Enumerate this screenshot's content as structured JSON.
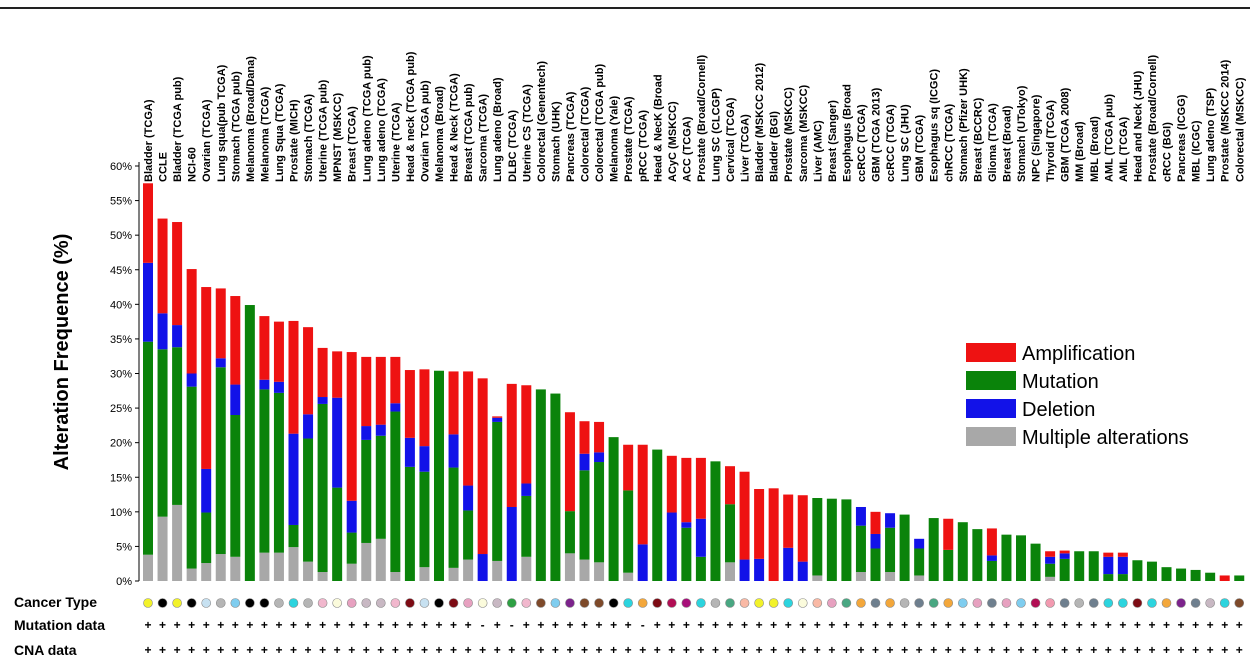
{
  "chart_data": {
    "type": "bar",
    "stacked": true,
    "ylabel": "Alteration Frequence (%)",
    "ylim": [
      0,
      60
    ],
    "yticks": [
      "0%",
      "5%",
      "10%",
      "15%",
      "20%",
      "25%",
      "30%",
      "35%",
      "40%",
      "45%",
      "50%",
      "55%",
      "60%"
    ],
    "grid": false,
    "legend_position": "right",
    "categories": [
      "Bladder (TCGA)",
      "CCLE",
      "Bladder (TCGA pub)",
      "NCI-60",
      "Ovarian (TCGA)",
      "Lung squa(pub TCGA)",
      "Stomach (TCGA pub)",
      "Melanoma (Broad/Dana)",
      "Melanoma (TCGA)",
      "Lung Squa (TCGA)",
      "Prostate (MICH)",
      "Stomach (TCGA)",
      "Uterine (TCGA pub)",
      "MPNST (MSKCC)",
      "Breast (TCGA)",
      "Lung adeno (TCGA pub)",
      "Lung adeno (TCGA)",
      "Uterine (TCGA)",
      "Head & neck (TCGA pub)",
      "Ovarian TCGA pub)",
      "Melanoma (Broad)",
      "Head & Neck (TCGA)",
      "Breast (TCGA pub)",
      "Sarcoma (TCGA)",
      "Lung adeno (Broad)",
      "DLBC (TCGA)",
      "Uterine CS (TCGA)",
      "Colorectal (Genentech)",
      "Stomach (UHK)",
      "Pancreas (TCGA)",
      "Colorectal (TCGA)",
      "Colorectal (TCGA pub)",
      "Melanoma (Yale)",
      "Prostate (TCGA)",
      "pRCC (TCGA)",
      "Head & NecK (Broad",
      "ACyC (MSKCC)",
      "ACC (TCGA)",
      "Prostate (Broad/Cornell)",
      "Lung SC (CLCGP)",
      "Cervical (TCGA)",
      "Liver (TCGA)",
      "Bladder (MSKCC 2012)",
      "Bladder (BGI)",
      "Prostate (MSKCC)",
      "Sarcoma (MSKCC)",
      "Liver (AMC)",
      "Breast (Sanger)",
      "Esophagus (Broad",
      "ccRCC (TCGA)",
      "GBM (TCGA 2013)",
      "ccRCC (TCGA)",
      "Lung SC (JHU)",
      "GBM (TCGA)",
      "Esophagus sq (ICGC)",
      "chRCC (TCGA)",
      "Stomach (Pfizer UHK)",
      "Breast (BCCRC)",
      "Glioma (TCGA)",
      "Breast (Broad)",
      "Stomach (UTokyo)",
      "NPC (Singapore)",
      "Thyroid (TCGA)",
      "GBM (TCGA 2008)",
      "MM (Broad)",
      "MBL (Broad)",
      "AML (TCGA pub)",
      "AML (TCGA)",
      "Head and Neck (JHU)",
      "Prostate (Broad/Cornell)",
      "cRCC (BGI)",
      "Pancreas (ICGG)",
      "MBL (ICGC)",
      "Lung adeno (TSP)",
      "Prostate (MSKCC 2014)",
      "Colorectal (MSKCC)"
    ],
    "series": [
      {
        "name": "Multiple alterations",
        "color": "#a8a8a8",
        "values": [
          3.8,
          9.3,
          11,
          1.8,
          2.6,
          3.9,
          3.5,
          0,
          4.1,
          4.1,
          4.9,
          2.8,
          1.3,
          0,
          2.5,
          5.5,
          6.1,
          1.3,
          0,
          2,
          0,
          1.9,
          3.1,
          0,
          2.9,
          0,
          3.5,
          0,
          0,
          4,
          3.1,
          2.7,
          0,
          1.2,
          0,
          0,
          0,
          0,
          0,
          0,
          2.7,
          0,
          0,
          0,
          0,
          0,
          0.8,
          0,
          0,
          1.3,
          0,
          1.3,
          0,
          0.8,
          0,
          0,
          0,
          0,
          0,
          0,
          0,
          0,
          0.6,
          0,
          0,
          0,
          0,
          0,
          0,
          0,
          0,
          0,
          0,
          0,
          0,
          0
        ]
      },
      {
        "name": "Mutation",
        "color": "#0a830a",
        "values": [
          30.8,
          24.2,
          22.8,
          26.3,
          7.3,
          27,
          20.5,
          39.9,
          23.6,
          23.1,
          3.2,
          17.8,
          24.3,
          13.5,
          4.5,
          14.9,
          14.9,
          23.2,
          16.5,
          13.8,
          30.4,
          14.5,
          7.1,
          0,
          20.1,
          0,
          8.8,
          27.7,
          27.1,
          6.1,
          12.9,
          14.5,
          20.8,
          11.9,
          0,
          19,
          0,
          7.7,
          3.5,
          17.3,
          8.4,
          0,
          0,
          0,
          0,
          0,
          11.2,
          11.9,
          11.8,
          6.7,
          4.7,
          6.4,
          9.6,
          3.9,
          9.1,
          4.5,
          8.5,
          7.5,
          2.9,
          6.7,
          6.6,
          5.4,
          1.9,
          3.2,
          4.3,
          4.3,
          1,
          1,
          3,
          2.8,
          2,
          1.8,
          1.6,
          1.2,
          0,
          0.8
        ]
      },
      {
        "name": "Deletion",
        "color": "#1212e8",
        "values": [
          11.4,
          5.2,
          3.2,
          1.9,
          6.3,
          1.3,
          4.4,
          0,
          1.4,
          1.6,
          13.2,
          3.5,
          1,
          13,
          4.6,
          2,
          1.6,
          1.2,
          4.2,
          3.7,
          0,
          4.8,
          3.6,
          3.9,
          0.6,
          10.7,
          1.8,
          0,
          0,
          0,
          2.4,
          1.4,
          0,
          0,
          5.3,
          0,
          9.9,
          0.8,
          5.5,
          0,
          0,
          3.1,
          3.2,
          0,
          4.8,
          2.8,
          0,
          0,
          0,
          2.7,
          2.1,
          2.1,
          0,
          1.4,
          0,
          0,
          0,
          0,
          0.8,
          0,
          0,
          0,
          1,
          0.8,
          0,
          0,
          2.5,
          2.5,
          0,
          0,
          0,
          0,
          0,
          0,
          0,
          0
        ]
      },
      {
        "name": "Amplification",
        "color": "#ee1212",
        "values": [
          11.5,
          13.7,
          14.9,
          15.1,
          26.3,
          10.1,
          12.8,
          0,
          9.2,
          8.7,
          16.3,
          12.6,
          7.1,
          6.7,
          21.5,
          10,
          9.8,
          6.7,
          9.8,
          11.1,
          0,
          9.1,
          16.5,
          25.4,
          0.2,
          17.8,
          14.2,
          0,
          0,
          14.3,
          4.7,
          4.4,
          0,
          6.6,
          14.4,
          0,
          8.2,
          9.3,
          8.8,
          0,
          5.5,
          12.7,
          10.1,
          13.4,
          7.7,
          9.6,
          0,
          0,
          0,
          0,
          3.2,
          0,
          0,
          0,
          0,
          4.5,
          0,
          0,
          3.9,
          0,
          0,
          0,
          0.8,
          0.4,
          0,
          0,
          0.6,
          0.6,
          0,
          0,
          0,
          0,
          0,
          0,
          0.8,
          0
        ]
      }
    ],
    "row_labels": [
      "Cancer Type",
      "Mutation data",
      "CNA data"
    ],
    "cancer_type_colors": [
      "#f2f22a",
      "#000000",
      "#f2f22a",
      "#000000",
      "#c7e1f1",
      "#b5b5b5",
      "#7fcdef",
      "#000000",
      "#000000",
      "#b5b5b5",
      "#2cd4de",
      "#b5b5b5",
      "#f1b7cd",
      "#fbfbdc",
      "#e7a1c0",
      "#c8b8c3",
      "#c8b8c3",
      "#f1b7cd",
      "#7d0b14",
      "#c7e1f1",
      "#000000",
      "#7d0b14",
      "#e7a1c0",
      "#fbfbdc",
      "#c8b8c3",
      "#2ea043",
      "#f1b7cd",
      "#7e4a2a",
      "#7fcdef",
      "#7c238c",
      "#7e4a2a",
      "#7e4a2a",
      "#000000",
      "#2cd4de",
      "#f3a73b",
      "#7d0b14",
      "#b20e54",
      "#a7107a",
      "#2cd4de",
      "#b5b5b5",
      "#49a782",
      "#f9b9a5",
      "#f2f22a",
      "#f2f22a",
      "#2cd4de",
      "#fbfbdc",
      "#f9b9a5",
      "#e7a1c0",
      "#49a782",
      "#f3a73b",
      "#6e7f8e",
      "#f3a73b",
      "#b5b5b5",
      "#6e7f8e",
      "#49a782",
      "#f3a73b",
      "#7fcdef",
      "#e7a1c0",
      "#6e7f8e",
      "#e7a1c0",
      "#7fcdef",
      "#b20e54",
      "#f29ab0",
      "#6e7f8e",
      "#b5b5b5",
      "#6e7f8e",
      "#2cd4de",
      "#2cd4de",
      "#7d0b14",
      "#2cd4de",
      "#f3a73b",
      "#7c238c",
      "#6e7f8e",
      "#c8b8c3",
      "#2cd4de",
      "#7e4a2a"
    ],
    "mutation_data": [
      "+",
      "+",
      "+",
      "+",
      "+",
      "+",
      "+",
      "+",
      "+",
      "+",
      "+",
      "+",
      "+",
      "+",
      "+",
      "+",
      "+",
      "+",
      "+",
      "+",
      "+",
      "+",
      "+",
      "-",
      "+",
      "-",
      "+",
      "+",
      "+",
      "+",
      "+",
      "+",
      "+",
      "+",
      "-",
      "+",
      "+",
      "+",
      "+",
      "+",
      "+",
      "+",
      "+",
      "+",
      "+",
      "+",
      "+",
      "+",
      "+",
      "+",
      "+",
      "+",
      "+",
      "+",
      "+",
      "+",
      "+",
      "+",
      "+",
      "+",
      "+",
      "+",
      "+",
      "+",
      "+",
      "+",
      "+",
      "+",
      "+",
      "+",
      "+",
      "+",
      "+",
      "+",
      "+",
      "+"
    ],
    "cna_data": [
      "+",
      "+",
      "+",
      "+",
      "+",
      "+",
      "+",
      "+",
      "+",
      "+",
      "+",
      "+",
      "+",
      "+",
      "+",
      "+",
      "+",
      "+",
      "+",
      "+",
      "+",
      "+",
      "+",
      "+",
      "+",
      "+",
      "+",
      "+",
      "+",
      "+",
      "+",
      "+",
      "+",
      "+",
      "+",
      "+",
      "+",
      "+",
      "+",
      "+",
      "+",
      "+",
      "+",
      "+",
      "+",
      "+",
      "+",
      "+",
      "+",
      "+",
      "+",
      "+",
      "+",
      "+",
      "+",
      "+",
      "+",
      "+",
      "+",
      "+",
      "+",
      "+",
      "+",
      "+",
      "+",
      "+",
      "+",
      "+",
      "+",
      "+",
      "+",
      "+",
      "+",
      "+",
      "+",
      "+"
    ]
  }
}
